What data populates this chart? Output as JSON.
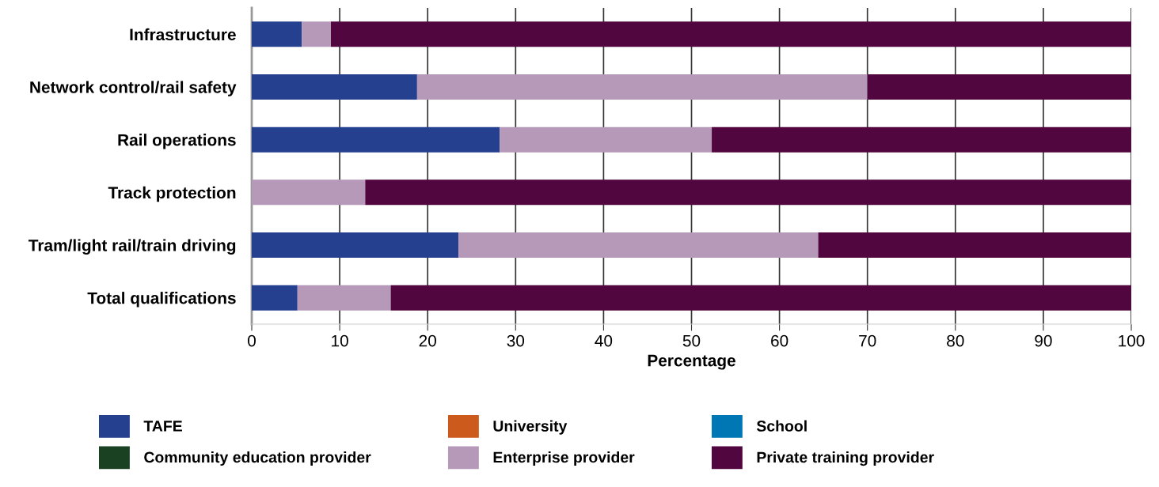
{
  "chart_data": {
    "type": "bar",
    "orientation": "horizontal",
    "stacked": true,
    "xlabel": "Percentage",
    "categories": [
      "Infrastructure",
      "Network control/rail safety",
      "Rail operations",
      "Track protection",
      "Tram/light rail/train driving",
      "Total qualifications"
    ],
    "series": [
      {
        "name": "TAFE",
        "color": "#25408f",
        "values": [
          5.7,
          18.8,
          28.2,
          0,
          23.5,
          5.2
        ]
      },
      {
        "name": "University",
        "color": "#cc5a1c",
        "values": [
          0,
          0,
          0,
          0,
          0,
          0
        ]
      },
      {
        "name": "School",
        "color": "#0077b5",
        "values": [
          0,
          0,
          0,
          0,
          0,
          0
        ]
      },
      {
        "name": "Community education provider",
        "color": "#1a4222",
        "values": [
          0,
          0,
          0,
          0,
          0,
          0
        ]
      },
      {
        "name": "Enterprise provider",
        "color": "#b699b8",
        "values": [
          3.3,
          51.2,
          24.1,
          12.9,
          40.9,
          10.6
        ]
      },
      {
        "name": "Private training provider",
        "color": "#52063f",
        "values": [
          91.0,
          30.0,
          47.7,
          87.1,
          35.6,
          84.2
        ]
      }
    ],
    "xlim": [
      0,
      100
    ],
    "xticks": [
      0,
      10,
      20,
      30,
      40,
      50,
      60,
      70,
      80,
      90,
      100
    ],
    "grid": "x",
    "legend": "bottom"
  }
}
